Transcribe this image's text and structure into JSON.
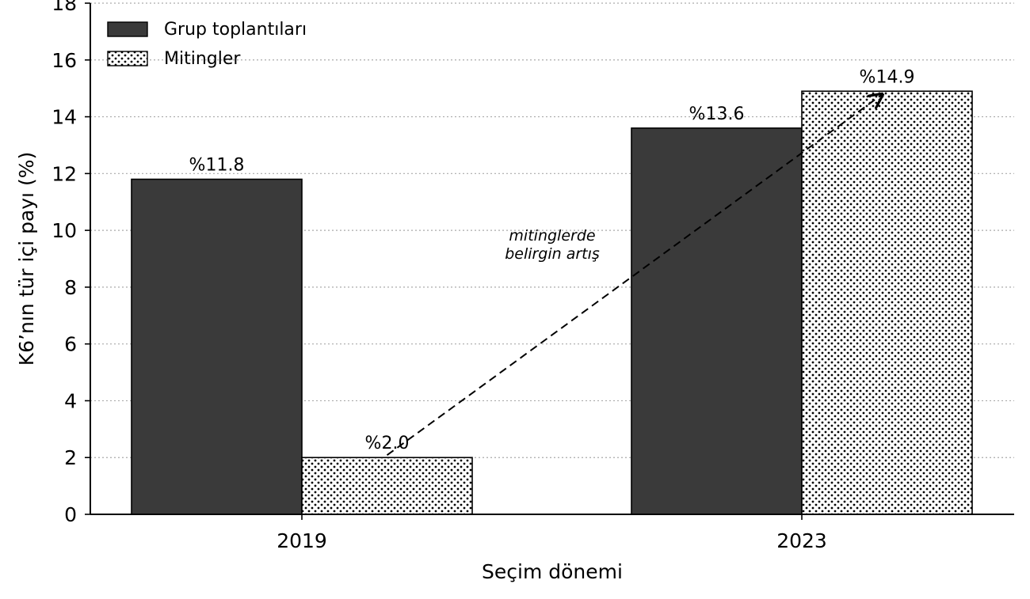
{
  "chart_data": {
    "type": "bar",
    "title": "",
    "xlabel": "Seçim dönemi",
    "ylabel": "K6’nın tür içi payı (%)",
    "categories": [
      "2019",
      "2023"
    ],
    "series": [
      {
        "name": "Grup toplantıları",
        "values": [
          11.8,
          13.6
        ],
        "data_labels": [
          "%11.8",
          "%13.6"
        ],
        "color": "#3a3a3a",
        "pattern": "solid"
      },
      {
        "name": "Mitingler",
        "values": [
          2.0,
          14.9
        ],
        "data_labels": [
          "%2.0",
          "%14.9"
        ],
        "color": "#ffffff",
        "pattern": "dots"
      }
    ],
    "ylim": [
      0,
      18
    ],
    "yticks": [
      0,
      2,
      4,
      6,
      8,
      10,
      12,
      14,
      16,
      18
    ],
    "ytick_labels": [
      "0",
      "2",
      "4",
      "6",
      "8",
      "10",
      "12",
      "14",
      "16",
      "18"
    ],
    "grid": "horizontal-dotted",
    "legend_position": "top-left",
    "annotation": {
      "text_lines": [
        "mitinglerde",
        "belirgin artış"
      ],
      "arrow_from": {
        "category": "2019",
        "series": "Mitingler",
        "value": 2.0
      },
      "arrow_to": {
        "category": "2023",
        "series": "Mitingler",
        "value": 14.9
      },
      "style": "dashed-arrow"
    }
  }
}
